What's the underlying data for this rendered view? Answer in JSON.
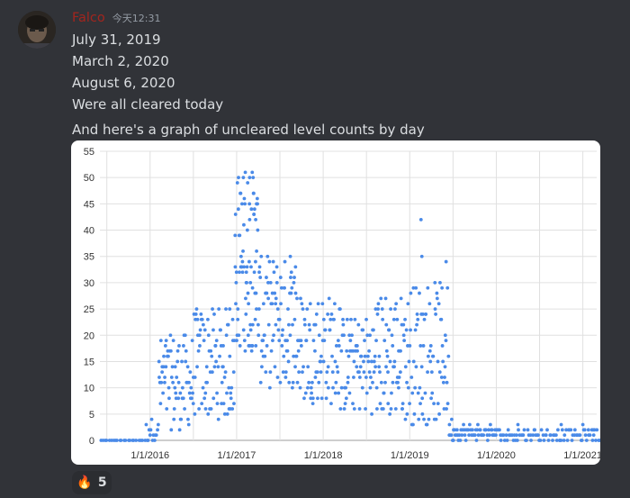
{
  "message": {
    "username": "Falco",
    "timestamp": "今天12:31",
    "lines": [
      "July 31, 2019",
      "March 2, 2020",
      "August 6, 2020",
      "Were all cleared today",
      "And here's a graph of uncleared level counts by day"
    ]
  },
  "reaction": {
    "emoji": "🔥",
    "count": "5"
  },
  "colors": {
    "point": "#4a8ae8",
    "grid": "#e0e0e0",
    "username": "#a2251e"
  },
  "chart_data": {
    "type": "scatter",
    "title": "",
    "xlabel": "",
    "ylabel": "",
    "ylim": [
      0,
      55
    ],
    "yticks": [
      "0",
      "5",
      "10",
      "15",
      "20",
      "25",
      "30",
      "35",
      "40",
      "45",
      "50",
      "55"
    ],
    "xlim": [
      "2015-06-01",
      "2021-03-01"
    ],
    "xticks": [
      {
        "label": "1/1/2016",
        "year": 2016
      },
      {
        "label": "1/1/2017",
        "year": 2017
      },
      {
        "label": "1/1/2018",
        "year": 2018
      },
      {
        "label": "1/1/2019",
        "year": 2019
      },
      {
        "label": "1/1/2020",
        "year": 2020
      },
      {
        "label": "1/1/2021",
        "year": 2021
      }
    ],
    "series": [
      {
        "name": "uncleared level counts",
        "segments": [
          {
            "from": 2015.42,
            "to": 2015.95,
            "lo": 0,
            "hi": 0,
            "n": 22
          },
          {
            "from": 2015.95,
            "to": 2016.1,
            "lo": 0,
            "hi": 4,
            "n": 14
          },
          {
            "from": 2016.1,
            "to": 2016.5,
            "lo": 2,
            "hi": 20,
            "n": 70
          },
          {
            "from": 2016.5,
            "to": 2016.98,
            "lo": 4,
            "hi": 25,
            "n": 85
          },
          {
            "from": 2016.98,
            "to": 2017.25,
            "lo": 17,
            "hi": 51,
            "n": 80
          },
          {
            "from": 2017.25,
            "to": 2017.7,
            "lo": 10,
            "hi": 35,
            "n": 90
          },
          {
            "from": 2017.7,
            "to": 2018.2,
            "lo": 7,
            "hi": 28,
            "n": 85
          },
          {
            "from": 2018.2,
            "to": 2018.6,
            "lo": 5,
            "hi": 24,
            "n": 70
          },
          {
            "from": 2018.6,
            "to": 2019.0,
            "lo": 4,
            "hi": 28,
            "n": 75
          },
          {
            "from": 2019.0,
            "to": 2019.45,
            "lo": 3,
            "hi": 30,
            "n": 80
          },
          {
            "from": 2019.45,
            "to": 2019.53,
            "lo": 0,
            "hi": 4,
            "n": 10
          },
          {
            "from": 2019.53,
            "to": 2020.0,
            "lo": 0,
            "hi": 3,
            "n": 50
          },
          {
            "from": 2020.0,
            "to": 2021.2,
            "lo": 0,
            "hi": 2,
            "n": 90
          }
        ],
        "outliers": [
          [
            2017.1,
            51
          ],
          [
            2017.18,
            51
          ],
          [
            2017.15,
            50
          ],
          [
            2017.23,
            45
          ],
          [
            2017.2,
            43
          ],
          [
            2017.22,
            42
          ],
          [
            2019.13,
            42
          ],
          [
            2019.14,
            35
          ],
          [
            2019.42,
            34
          ],
          [
            2017.62,
            35
          ],
          [
            2017.68,
            33
          ],
          [
            2016.92,
            25
          ],
          [
            2020.25,
            3
          ],
          [
            2020.75,
            3
          ],
          [
            2021.0,
            3
          ],
          [
            2021.12,
            2
          ]
        ]
      }
    ]
  }
}
